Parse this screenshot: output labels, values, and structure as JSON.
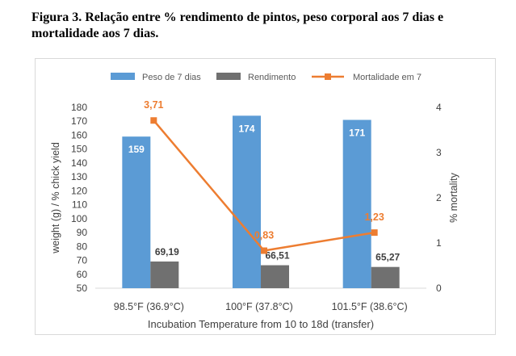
{
  "figure": {
    "title": "Figura 3. Relação entre % rendimento de pintos, peso corporal aos 7 dias e mortalidade aos 7 dias."
  },
  "chart_data": {
    "type": "bar",
    "categories": [
      "98.5°F (36.9°C)",
      "100°F (37.8°C)",
      "101.5°F (38.6°C)"
    ],
    "series": [
      {
        "name": "Peso de 7 dias",
        "type": "bar",
        "axis": "left",
        "color": "#5b9bd5",
        "values": [
          159,
          174,
          171
        ],
        "labels": [
          "159",
          "174",
          "171"
        ],
        "label_color": "#ffffff"
      },
      {
        "name": "Rendimento",
        "type": "bar",
        "axis": "left",
        "color": "#707070",
        "values": [
          69.19,
          66.51,
          65.27
        ],
        "labels": [
          "69,19",
          "66,51",
          "65,27"
        ],
        "label_color": "#404040"
      },
      {
        "name": "Mortalidade em 7",
        "type": "line",
        "axis": "right",
        "color": "#ed7d31",
        "values": [
          3.71,
          0.83,
          1.23
        ],
        "labels": [
          "3,71",
          "0,83",
          "1,23"
        ],
        "label_color": "#ed7d31"
      }
    ],
    "xlabel": "Incubation Temperature from 10 to 18d (transfer)",
    "ylabel": "weight (g) / % chick yield",
    "y2label": "% mortality",
    "ylim": [
      50,
      180
    ],
    "yticks": [
      "180",
      "170",
      "160",
      "150",
      "140",
      "130",
      "120",
      "110",
      "100",
      "90",
      "80",
      "70",
      "60",
      "50"
    ],
    "y2lim": [
      0,
      4
    ],
    "y2ticks": [
      "4",
      "3",
      "2",
      "1",
      "0"
    ],
    "grid": false,
    "legend_position": "top"
  }
}
